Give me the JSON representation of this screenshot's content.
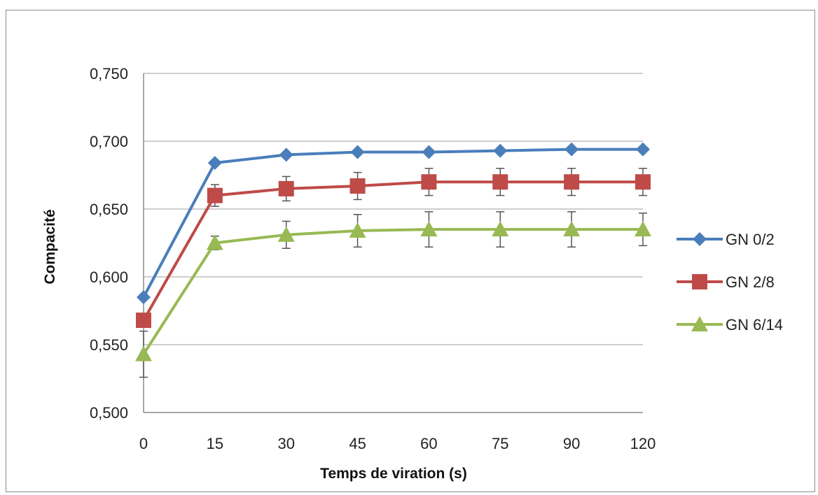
{
  "chart_data": {
    "type": "line",
    "x": [
      "0",
      "15",
      "30",
      "45",
      "60",
      "75",
      "90",
      "120"
    ],
    "xlabel": "Temps de viration (s)",
    "ylabel": "Compacité",
    "ylim": [
      0.5,
      0.75
    ],
    "yticks": [
      "0,500",
      "0,550",
      "0,600",
      "0,650",
      "0,700",
      "0,750"
    ],
    "grid": true,
    "legend_position": "right",
    "series": [
      {
        "name": "GN 0/2",
        "color": "#4a7ebb",
        "marker": "diamond",
        "values": [
          0.585,
          0.684,
          0.69,
          0.692,
          0.692,
          0.693,
          0.694,
          0.694
        ],
        "errors": [
          0,
          0,
          0,
          0,
          0,
          0,
          0,
          0
        ]
      },
      {
        "name": "GN 2/8",
        "color": "#be4b48",
        "marker": "square",
        "values": [
          0.568,
          0.66,
          0.665,
          0.667,
          0.67,
          0.67,
          0.67,
          0.67
        ],
        "errors": [
          0,
          0.008,
          0.009,
          0.01,
          0.01,
          0.01,
          0.01,
          0.01
        ]
      },
      {
        "name": "GN 6/14",
        "color": "#98b954",
        "marker": "triangle",
        "values": [
          0.543,
          0.625,
          0.631,
          0.634,
          0.635,
          0.635,
          0.635,
          0.635
        ],
        "errors": [
          0.017,
          0.005,
          0.01,
          0.012,
          0.013,
          0.013,
          0.013,
          0.012
        ]
      }
    ]
  }
}
